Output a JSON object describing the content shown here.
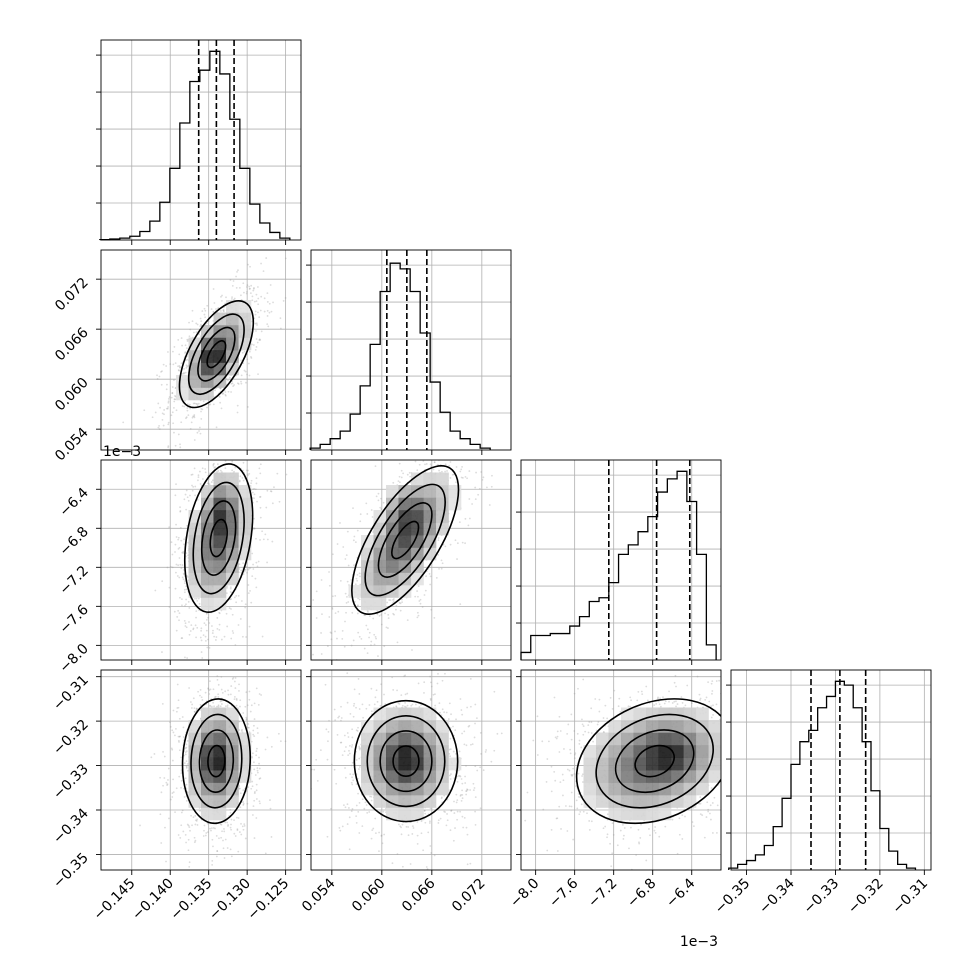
{
  "colors": {
    "background": "#ffffff",
    "ink": "#000000",
    "grid": "#b0b0b0",
    "scatter": "#9a9a9a",
    "density_max": "#000000"
  },
  "chart_data": {
    "type": "corner",
    "grid": true,
    "parameters": [
      {
        "range": [
          -0.149,
          -0.123
        ],
        "ticks": [
          -0.145,
          -0.14,
          -0.135,
          -0.13,
          -0.125
        ],
        "tick_labels": [
          "−0.145",
          "−0.140",
          "−0.135",
          "−0.130",
          "−0.125"
        ],
        "offset_label": ""
      },
      {
        "range": [
          0.0515,
          0.0755
        ],
        "ticks": [
          0.054,
          0.06,
          0.066,
          0.072
        ],
        "tick_labels": [
          "0.054",
          "0.060",
          "0.066",
          "0.072"
        ],
        "offset_label": ""
      },
      {
        "range": [
          -8.15,
          -6.1
        ],
        "ticks": [
          -8.0,
          -7.6,
          -7.2,
          -6.8,
          -6.4
        ],
        "tick_labels": [
          "−8.0",
          "−7.6",
          "−7.2",
          "−6.8",
          "−6.4"
        ],
        "offset_label": "1e−3"
      },
      {
        "range": [
          -0.3535,
          -0.3085
        ],
        "ticks": [
          -0.35,
          -0.34,
          -0.33,
          -0.32,
          -0.31
        ],
        "tick_labels": [
          "−0.35",
          "−0.34",
          "−0.33",
          "−0.32",
          "−0.31"
        ],
        "offset_label": ""
      }
    ],
    "marginals": [
      {
        "parameter": 0,
        "quantiles": [
          -0.1363,
          -0.134,
          -0.1317
        ],
        "bins": [
          [
            -0.1485,
            0.002
          ],
          [
            -0.1472,
            0.005
          ],
          [
            -0.1459,
            0.01
          ],
          [
            -0.1446,
            0.02
          ],
          [
            -0.1433,
            0.045
          ],
          [
            -0.142,
            0.1
          ],
          [
            -0.1407,
            0.2
          ],
          [
            -0.1394,
            0.38
          ],
          [
            -0.1381,
            0.62
          ],
          [
            -0.1368,
            0.84
          ],
          [
            -0.1355,
            0.9
          ],
          [
            -0.1342,
            1.0
          ],
          [
            -0.1329,
            0.88
          ],
          [
            -0.1316,
            0.64
          ],
          [
            -0.1303,
            0.38
          ],
          [
            -0.129,
            0.19
          ],
          [
            -0.1277,
            0.09
          ],
          [
            -0.1264,
            0.04
          ],
          [
            -0.1251,
            0.01
          ]
        ]
      },
      {
        "parameter": 1,
        "quantiles": [
          0.0606,
          0.063,
          0.0654
        ],
        "bins": [
          [
            0.052,
            0.01
          ],
          [
            0.0532,
            0.03
          ],
          [
            0.0544,
            0.06
          ],
          [
            0.0556,
            0.1
          ],
          [
            0.0568,
            0.19
          ],
          [
            0.058,
            0.34
          ],
          [
            0.0592,
            0.56
          ],
          [
            0.0604,
            0.84
          ],
          [
            0.0616,
            0.99
          ],
          [
            0.0628,
            0.96
          ],
          [
            0.064,
            0.84
          ],
          [
            0.0652,
            0.62
          ],
          [
            0.0664,
            0.36
          ],
          [
            0.0676,
            0.2
          ],
          [
            0.0688,
            0.1
          ],
          [
            0.07,
            0.06
          ],
          [
            0.0712,
            0.03
          ],
          [
            0.0724,
            0.01
          ]
        ]
      },
      {
        "parameter": 2,
        "quantiles": [
          -7.25,
          -6.76,
          -6.42
        ],
        "bins": [
          [
            -8.1,
            0.04
          ],
          [
            -8.0,
            0.13
          ],
          [
            -7.9,
            0.13
          ],
          [
            -7.8,
            0.14
          ],
          [
            -7.7,
            0.14
          ],
          [
            -7.6,
            0.18
          ],
          [
            -7.5,
            0.23
          ],
          [
            -7.4,
            0.31
          ],
          [
            -7.3,
            0.33
          ],
          [
            -7.2,
            0.41
          ],
          [
            -7.1,
            0.56
          ],
          [
            -7.0,
            0.61
          ],
          [
            -6.9,
            0.68
          ],
          [
            -6.8,
            0.76
          ],
          [
            -6.7,
            0.89
          ],
          [
            -6.6,
            0.96
          ],
          [
            -6.5,
            1.0
          ],
          [
            -6.4,
            0.84
          ],
          [
            -6.3,
            0.56
          ],
          [
            -6.2,
            0.08
          ]
        ]
      },
      {
        "parameter": 3,
        "quantiles": [
          -0.3355,
          -0.329,
          -0.3232
        ],
        "bins": [
          [
            -0.353,
            0.01
          ],
          [
            -0.351,
            0.03
          ],
          [
            -0.349,
            0.05
          ],
          [
            -0.347,
            0.08
          ],
          [
            -0.345,
            0.13
          ],
          [
            -0.343,
            0.23
          ],
          [
            -0.341,
            0.38
          ],
          [
            -0.339,
            0.56
          ],
          [
            -0.337,
            0.68
          ],
          [
            -0.335,
            0.74
          ],
          [
            -0.333,
            0.86
          ],
          [
            -0.331,
            0.92
          ],
          [
            -0.329,
            1.0
          ],
          [
            -0.327,
            0.98
          ],
          [
            -0.325,
            0.86
          ],
          [
            -0.323,
            0.68
          ],
          [
            -0.321,
            0.42
          ],
          [
            -0.319,
            0.22
          ],
          [
            -0.317,
            0.1
          ],
          [
            -0.315,
            0.03
          ],
          [
            -0.313,
            0.01
          ]
        ]
      }
    ],
    "pairs": [
      {
        "x_param": 0,
        "y_param": 1,
        "center": [
          -0.134,
          0.063
        ],
        "sd": [
          0.0024,
          0.0032
        ],
        "corr": 0.6,
        "mode": [
          -0.1345,
          0.0628
        ]
      },
      {
        "x_param": 0,
        "y_param": 2,
        "center": [
          -0.1337,
          -6.9
        ],
        "sd": [
          0.0022,
          0.38
        ],
        "corr": 0.3,
        "mode": [
          -0.1333,
          -6.62
        ]
      },
      {
        "x_param": 1,
        "y_param": 2,
        "center": [
          0.0628,
          -6.92
        ],
        "sd": [
          0.0032,
          0.38
        ],
        "corr": 0.68,
        "mode": [
          0.0628,
          -6.62
        ]
      },
      {
        "x_param": 0,
        "y_param": 3,
        "center": [
          -0.134,
          -0.329
        ],
        "sd": [
          0.0022,
          0.007
        ],
        "corr": 0.05,
        "mode": [
          -0.1342,
          -0.3285
        ]
      },
      {
        "x_param": 1,
        "y_param": 3,
        "center": [
          0.0629,
          -0.329
        ],
        "sd": [
          0.0031,
          0.0068
        ],
        "corr": 0.0,
        "mode": [
          0.0629,
          -0.3285
        ]
      },
      {
        "x_param": 2,
        "y_param": 3,
        "center": [
          -6.78,
          -0.329
        ],
        "sd": [
          0.4,
          0.007
        ],
        "corr": 0.25,
        "mode": [
          -6.6,
          -0.3275
        ]
      }
    ]
  }
}
